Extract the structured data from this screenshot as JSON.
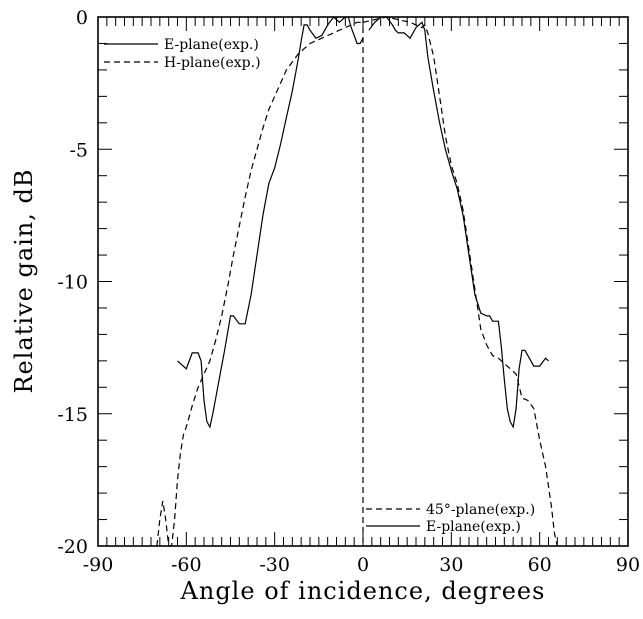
{
  "chart_data": {
    "type": "line",
    "title": "",
    "xlabel": "Angle of incidence, degrees",
    "ylabel": "Relative gain, dB",
    "xlim": [
      -90,
      90
    ],
    "ylim": [
      -20,
      0
    ],
    "xticks": [
      -90,
      -60,
      -30,
      0,
      30,
      60,
      90
    ],
    "yticks": [
      0,
      -5,
      -10,
      -15,
      -20
    ],
    "xtick_labels": [
      "-90",
      "-60",
      "-30",
      "0",
      "30",
      "60",
      "90"
    ],
    "ytick_labels": [
      "0",
      "-5",
      "-10",
      "-15",
      "-20"
    ],
    "grid": false,
    "legends": [
      {
        "position": "top-left",
        "entries": [
          {
            "label": "E-plane(exp.)",
            "style": "solid"
          },
          {
            "label": "H-plane(exp.)",
            "style": "dashed"
          }
        ]
      },
      {
        "position": "bottom-right",
        "entries": [
          {
            "label": "45°-plane(exp.)",
            "style": "dashed"
          },
          {
            "label": "E-plane(exp.)",
            "style": "solid"
          }
        ]
      }
    ],
    "series": [
      {
        "name": "E-plane(exp.)",
        "style": "solid",
        "x": [
          -63,
          -60,
          -58,
          -56,
          -55,
          -54,
          -53,
          -52,
          -51,
          -49,
          -47,
          -45,
          -44,
          -42,
          -40,
          -38,
          -36,
          -34,
          -32,
          -30,
          -28,
          -26,
          -24,
          -22,
          -21,
          -20,
          -19,
          -18,
          -16,
          -14,
          -12,
          -10,
          -8,
          -7,
          -6,
          -5,
          -4,
          -3,
          -2,
          -1,
          0
        ],
        "y": [
          -13.0,
          -13.3,
          -12.7,
          -12.7,
          -13.0,
          -14.5,
          -15.3,
          -15.5,
          -15.0,
          -13.8,
          -12.6,
          -11.3,
          -11.3,
          -11.6,
          -11.6,
          -10.5,
          -9.0,
          -7.5,
          -6.3,
          -5.7,
          -4.8,
          -3.8,
          -2.8,
          -1.6,
          -0.9,
          -0.3,
          -0.3,
          -0.5,
          -0.8,
          -0.7,
          -0.3,
          0.0,
          -0.2,
          -0.1,
          0.0,
          0.0,
          -0.4,
          -0.7,
          -1.0,
          -1.0,
          -0.8
        ]
      },
      {
        "name": "H-plane(exp.)",
        "style": "dashed",
        "x": [
          -66,
          -65,
          -64,
          -63,
          -62,
          -61,
          -60,
          -59,
          -58,
          -56,
          -54,
          -52,
          -50,
          -48,
          -46,
          -44,
          -42,
          -40,
          -38,
          -36,
          -34,
          -32,
          -30,
          -28,
          -26,
          -24,
          -22,
          -20,
          -18,
          -16,
          -14,
          -12,
          -10,
          -8,
          -6,
          -4,
          -2,
          0
        ],
        "y": [
          -21.0,
          -20.5,
          -19.0,
          -17.5,
          -16.5,
          -15.8,
          -15.5,
          -15.1,
          -14.7,
          -14.0,
          -13.5,
          -13.0,
          -12.2,
          -11.3,
          -10.2,
          -9.0,
          -7.9,
          -6.8,
          -5.8,
          -5.0,
          -4.2,
          -3.5,
          -3.0,
          -2.5,
          -2.0,
          -1.7,
          -1.4,
          -1.2,
          -1.0,
          -0.9,
          -0.8,
          -0.7,
          -0.6,
          -0.5,
          -0.4,
          -0.3,
          -0.2,
          -0.2
        ]
      },
      {
        "name": "45°-plane(exp.)",
        "style": "dashed",
        "x": [
          -70,
          -69,
          -68,
          -67,
          -66,
          -65
        ],
        "y": [
          -22.0,
          -19.0,
          -18.3,
          -19.0,
          -21.0,
          -22.0
        ]
      },
      {
        "name": "boresight",
        "style": "dashed",
        "x": [
          0,
          0
        ],
        "y": [
          0,
          -20
        ]
      },
      {
        "name": "E-plane(exp.)",
        "style": "solid",
        "x": [
          2,
          4,
          6,
          8,
          10,
          11,
          12,
          14,
          16,
          18,
          20,
          21,
          22,
          24,
          26,
          28,
          30,
          32,
          34,
          36,
          38,
          40,
          42,
          43,
          44,
          46,
          47,
          48,
          49,
          50,
          51,
          52,
          53,
          54,
          55,
          56,
          58,
          60,
          62,
          63
        ],
        "y": [
          -0.5,
          -0.2,
          0.0,
          0.0,
          -0.3,
          -0.5,
          -0.6,
          -0.6,
          -0.8,
          -0.4,
          -0.2,
          -0.5,
          -1.5,
          -2.8,
          -4.0,
          -5.0,
          -5.8,
          -6.5,
          -7.5,
          -9.0,
          -10.5,
          -11.2,
          -11.3,
          -11.3,
          -11.5,
          -11.5,
          -12.5,
          -13.7,
          -14.8,
          -15.3,
          -15.5,
          -14.8,
          -13.3,
          -12.6,
          -12.6,
          -12.8,
          -13.2,
          -13.2,
          -12.9,
          -13.0
        ]
      },
      {
        "name": "H-plane(exp.)",
        "style": "dashed",
        "x": [
          0,
          4,
          8,
          12,
          16,
          18,
          20,
          21,
          22,
          24,
          26,
          28,
          30,
          32,
          34,
          36,
          38,
          40,
          42,
          44,
          46,
          48,
          50,
          52,
          54,
          56,
          58,
          60,
          62,
          64,
          65,
          66
        ],
        "y": [
          -0.2,
          -0.1,
          0.0,
          -0.1,
          -0.2,
          -0.3,
          -0.4,
          -0.3,
          -0.6,
          -1.5,
          -3.0,
          -4.5,
          -5.6,
          -6.3,
          -7.3,
          -8.8,
          -10.3,
          -11.8,
          -12.4,
          -12.8,
          -12.9,
          -13.1,
          -13.3,
          -13.5,
          -14.4,
          -14.5,
          -14.8,
          -16.0,
          -17.0,
          -18.5,
          -19.5,
          -20.0
        ]
      }
    ]
  }
}
